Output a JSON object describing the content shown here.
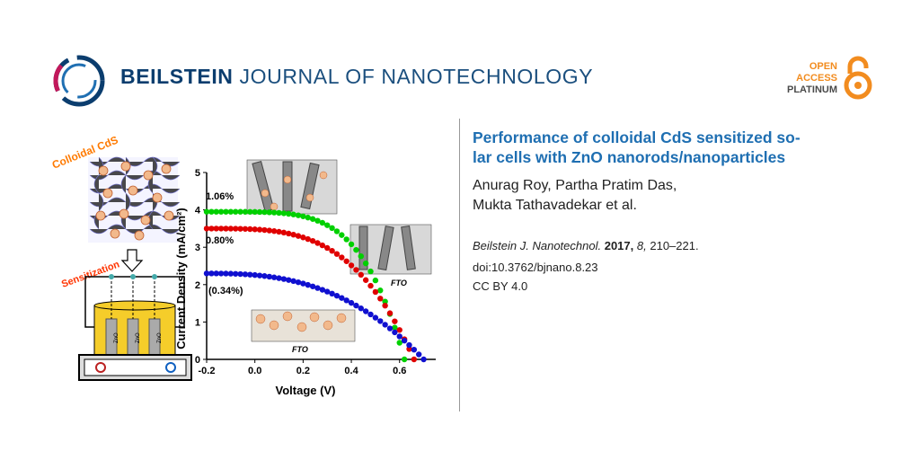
{
  "header": {
    "journal_bold": "BEILSTEIN",
    "journal_rest": "JOURNAL OF NANOTECHNOLOGY",
    "oa_line1": "OPEN",
    "oa_line2": "ACCESS",
    "oa_line3": "PLATINUM"
  },
  "article": {
    "title_line1": "Performance of colloidal CdS sensitized so-",
    "title_line2": "lar cells with ZnO nanorods/nanoparticles",
    "authors_line1": "Anurag Roy, Partha Pratim Das,",
    "authors_line2": "Mukta Tathavadekar et al.",
    "journal_abbrev": "Beilstein J. Nanotechnol.",
    "year": "2017,",
    "volume": "8,",
    "pages": "210–221.",
    "doi": "doi:10.3762/bjnano.8.23",
    "license": "CC BY 4.0"
  },
  "figure": {
    "label_colloidal": "Colloidal CdS",
    "label_sensitization": "Sensitization",
    "label_zno": "ZnO",
    "label_fto": "FTO",
    "eff_green": "1.06%",
    "eff_red": "0.80%",
    "eff_blue": "(0.34%)"
  },
  "chart_data": {
    "type": "scatter",
    "xlabel": "Voltage (V)",
    "ylabel": "Current Density (mA/cm²)",
    "xlim": [
      -0.2,
      0.75
    ],
    "ylim": [
      0,
      5
    ],
    "xticks": [
      "-0.2",
      "0.0",
      "0.2",
      "0.4",
      "0.6"
    ],
    "yticks": [
      "0",
      "1",
      "2",
      "3",
      "4",
      "5"
    ],
    "series": [
      {
        "name": "1.06%",
        "color": "#00d000",
        "jsc": 3.95,
        "voc": 0.62,
        "shape": 2.2
      },
      {
        "name": "0.80%",
        "color": "#e00000",
        "jsc": 3.5,
        "voc": 0.66,
        "shape": 1.6
      },
      {
        "name": "(0.34%)",
        "color": "#1010d0",
        "jsc": 2.3,
        "voc": 0.7,
        "shape": 1.2
      }
    ]
  },
  "colors": {
    "journal": "#0b3d6e",
    "accent": "#1f6fb2",
    "oa_orange": "#f28c1f"
  }
}
